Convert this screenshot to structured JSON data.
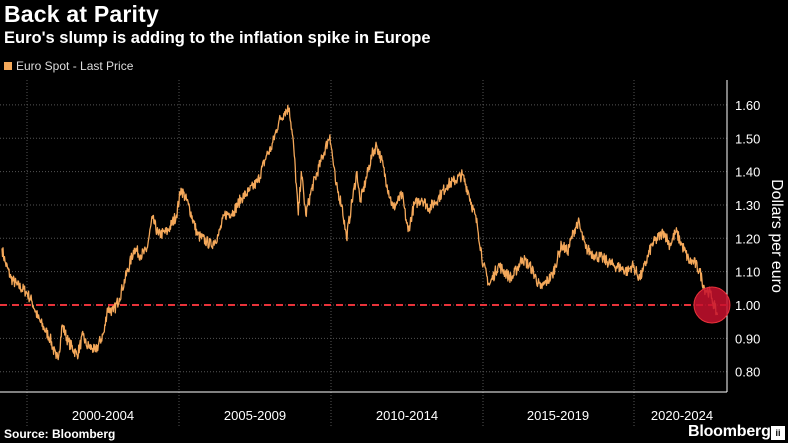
{
  "chart_data": {
    "type": "line",
    "title": "Back at Parity",
    "subtitle": "Euro's slump is adding to the inflation spike in Europe",
    "legend": [
      "Euro Spot - Last Price"
    ],
    "ylabel": "Dollars per euro",
    "xlabel": "",
    "ylim": [
      0.75,
      1.65
    ],
    "yticks": [
      "0.80",
      "0.90",
      "1.00",
      "1.10",
      "1.20",
      "1.30",
      "1.40",
      "1.50",
      "1.60"
    ],
    "x_period_labels": [
      "2000-2004",
      "2005-2009",
      "2010-2014",
      "2015-2019",
      "2020-2024"
    ],
    "xlim": [
      1999.0,
      2023.0
    ],
    "reference_line": {
      "y": 1.0,
      "color": "#e8333a",
      "style": "dashed"
    },
    "highlight": {
      "x": 2022.6,
      "y": 1.0,
      "color": "#c8102e"
    },
    "series": [
      {
        "name": "Euro Spot - Last Price",
        "color": "#f4a85a",
        "points": [
          [
            1999.0,
            1.17
          ],
          [
            1999.1,
            1.13
          ],
          [
            1999.3,
            1.08
          ],
          [
            1999.5,
            1.06
          ],
          [
            1999.8,
            1.04
          ],
          [
            2000.0,
            1.01
          ],
          [
            2000.2,
            0.96
          ],
          [
            2000.4,
            0.93
          ],
          [
            2000.6,
            0.9
          ],
          [
            2000.8,
            0.84
          ],
          [
            2000.9,
            0.86
          ],
          [
            2001.0,
            0.94
          ],
          [
            2001.2,
            0.89
          ],
          [
            2001.5,
            0.85
          ],
          [
            2001.7,
            0.91
          ],
          [
            2001.8,
            0.88
          ],
          [
            2002.0,
            0.87
          ],
          [
            2002.1,
            0.86
          ],
          [
            2002.4,
            0.92
          ],
          [
            2002.5,
            0.99
          ],
          [
            2002.7,
            0.98
          ],
          [
            2002.9,
            1.02
          ],
          [
            2003.0,
            1.05
          ],
          [
            2003.4,
            1.17
          ],
          [
            2003.6,
            1.15
          ],
          [
            2003.8,
            1.16
          ],
          [
            2004.0,
            1.26
          ],
          [
            2004.2,
            1.21
          ],
          [
            2004.5,
            1.22
          ],
          [
            2004.8,
            1.27
          ],
          [
            2004.95,
            1.35
          ],
          [
            2005.2,
            1.3
          ],
          [
            2005.5,
            1.21
          ],
          [
            2005.8,
            1.19
          ],
          [
            2005.95,
            1.18
          ],
          [
            2006.2,
            1.21
          ],
          [
            2006.4,
            1.27
          ],
          [
            2006.7,
            1.28
          ],
          [
            2006.95,
            1.32
          ],
          [
            2007.2,
            1.34
          ],
          [
            2007.5,
            1.37
          ],
          [
            2007.8,
            1.45
          ],
          [
            2007.95,
            1.47
          ],
          [
            2008.2,
            1.55
          ],
          [
            2008.4,
            1.58
          ],
          [
            2008.55,
            1.59
          ],
          [
            2008.7,
            1.47
          ],
          [
            2008.85,
            1.27
          ],
          [
            2008.95,
            1.4
          ],
          [
            2009.1,
            1.27
          ],
          [
            2009.3,
            1.35
          ],
          [
            2009.6,
            1.43
          ],
          [
            2009.9,
            1.51
          ],
          [
            2010.1,
            1.36
          ],
          [
            2010.3,
            1.3
          ],
          [
            2010.45,
            1.2
          ],
          [
            2010.6,
            1.29
          ],
          [
            2010.8,
            1.4
          ],
          [
            2010.9,
            1.31
          ],
          [
            2011.0,
            1.34
          ],
          [
            2011.3,
            1.45
          ],
          [
            2011.45,
            1.48
          ],
          [
            2011.6,
            1.44
          ],
          [
            2011.8,
            1.36
          ],
          [
            2012.0,
            1.29
          ],
          [
            2012.3,
            1.33
          ],
          [
            2012.5,
            1.22
          ],
          [
            2012.7,
            1.3
          ],
          [
            2012.95,
            1.32
          ],
          [
            2013.2,
            1.29
          ],
          [
            2013.5,
            1.32
          ],
          [
            2013.8,
            1.36
          ],
          [
            2014.0,
            1.37
          ],
          [
            2014.3,
            1.39
          ],
          [
            2014.5,
            1.34
          ],
          [
            2014.8,
            1.24
          ],
          [
            2015.0,
            1.12
          ],
          [
            2015.2,
            1.06
          ],
          [
            2015.5,
            1.12
          ],
          [
            2015.8,
            1.09
          ],
          [
            2015.95,
            1.08
          ],
          [
            2016.3,
            1.14
          ],
          [
            2016.6,
            1.11
          ],
          [
            2016.9,
            1.05
          ],
          [
            2017.0,
            1.06
          ],
          [
            2017.3,
            1.09
          ],
          [
            2017.6,
            1.18
          ],
          [
            2017.8,
            1.16
          ],
          [
            2018.0,
            1.22
          ],
          [
            2018.15,
            1.25
          ],
          [
            2018.4,
            1.17
          ],
          [
            2018.7,
            1.15
          ],
          [
            2018.95,
            1.14
          ],
          [
            2019.3,
            1.12
          ],
          [
            2019.6,
            1.11
          ],
          [
            2019.8,
            1.1
          ],
          [
            2019.95,
            1.12
          ],
          [
            2020.2,
            1.08
          ],
          [
            2020.3,
            1.1
          ],
          [
            2020.6,
            1.18
          ],
          [
            2020.9,
            1.21
          ],
          [
            2021.0,
            1.22
          ],
          [
            2021.2,
            1.18
          ],
          [
            2021.4,
            1.22
          ],
          [
            2021.6,
            1.18
          ],
          [
            2021.85,
            1.13
          ],
          [
            2022.0,
            1.13
          ],
          [
            2022.2,
            1.1
          ],
          [
            2022.35,
            1.05
          ],
          [
            2022.5,
            1.04
          ],
          [
            2022.6,
            1.02
          ],
          [
            2022.7,
            0.99
          ],
          [
            2022.78,
            0.97
          ]
        ]
      }
    ]
  },
  "legend_label": "Euro Spot - Last Price",
  "footer": {
    "source": "Source: Bloomberg",
    "brand": "Bloomberg",
    "brand_box": "ii"
  },
  "colors": {
    "line": "#f4a85a",
    "reference": "#e8333a",
    "grid": "#555555",
    "highlight": "#c8102e"
  }
}
